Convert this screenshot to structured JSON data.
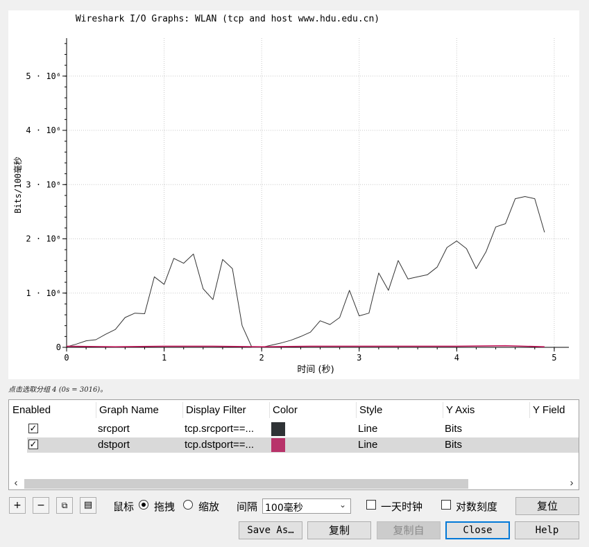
{
  "chart_data": {
    "type": "line",
    "title": "Wireshark I/O Graphs: WLAN (tcp and host www.hdu.edu.cn)",
    "xlabel": "时间 (秒)",
    "ylabel": "Bits/100毫秒",
    "xlim": [
      0,
      5.15
    ],
    "ylim": [
      0,
      5.7
    ],
    "y_unit_exponent": "10⁶",
    "xticks": [
      "0",
      "1",
      "2",
      "3",
      "4",
      "5"
    ],
    "yticks": [
      {
        "value": 0,
        "label": "0"
      },
      {
        "value": 1,
        "label": "1 · 10⁶"
      },
      {
        "value": 2,
        "label": "2 · 10⁶"
      },
      {
        "value": 3,
        "label": "3 · 10⁶"
      },
      {
        "value": 4,
        "label": "4 · 10⁶"
      },
      {
        "value": 5,
        "label": "5 · 10⁶"
      }
    ],
    "grid": true,
    "series": [
      {
        "name": "srcport",
        "color": "#333333",
        "x": [
          0,
          0.1,
          0.2,
          0.3,
          0.4,
          0.5,
          0.6,
          0.7,
          0.8,
          0.9,
          1.0,
          1.1,
          1.2,
          1.3,
          1.4,
          1.5,
          1.6,
          1.7,
          1.8,
          1.9,
          2.0,
          2.1,
          2.2,
          2.3,
          2.4,
          2.5,
          2.6,
          2.7,
          2.8,
          2.9,
          3.0,
          3.1,
          3.2,
          3.3,
          3.4,
          3.5,
          3.6,
          3.7,
          3.8,
          3.9,
          4.0,
          4.1,
          4.2,
          4.3,
          4.4,
          4.5,
          4.6,
          4.7,
          4.8,
          4.9
        ],
        "y": [
          0.01,
          0.06,
          0.12,
          0.14,
          0.24,
          0.33,
          0.55,
          0.63,
          0.62,
          1.3,
          1.16,
          1.64,
          1.55,
          1.72,
          1.08,
          0.88,
          1.62,
          1.45,
          0.4,
          0.0,
          0.0,
          0.04,
          0.08,
          0.13,
          0.2,
          0.28,
          0.49,
          0.42,
          0.55,
          1.05,
          0.58,
          0.63,
          1.37,
          1.05,
          1.6,
          1.26,
          1.3,
          1.34,
          1.48,
          1.84,
          1.96,
          1.82,
          1.45,
          1.76,
          2.22,
          2.28,
          2.74,
          2.78,
          2.74,
          2.12
        ]
      },
      {
        "name": "dstport",
        "color": "#c2185b",
        "x": [
          0,
          0.5,
          1.0,
          1.5,
          2.0,
          2.5,
          3.0,
          3.5,
          4.0,
          4.5,
          4.9
        ],
        "y": [
          0.02,
          0.01,
          0.02,
          0.02,
          0.01,
          0.02,
          0.02,
          0.02,
          0.02,
          0.03,
          0.01
        ]
      }
    ]
  },
  "status_text": "点击选取分组 4 (0s = 3016)。",
  "table": {
    "headers": [
      "Enabled",
      "Graph Name",
      "Display Filter",
      "Color",
      "Style",
      "Y Axis",
      "Y Field"
    ],
    "rows": [
      {
        "enabled": "✓",
        "name": "srcport",
        "filter": "tcp.srcport==...",
        "color": "#2f3336",
        "style": "Line",
        "yaxis": "Bits"
      },
      {
        "enabled": "✓",
        "name": "dstport",
        "filter": "tcp.dstport==...",
        "color": "#b8336a",
        "style": "Line",
        "yaxis": "Bits"
      }
    ]
  },
  "toolbar": {
    "add_label": "+",
    "remove_label": "−",
    "copy_label": "⧉",
    "clear_label": "▤",
    "mouse_label": "鼠标",
    "drag_label": "拖拽",
    "zoom_label": "缩放",
    "interval_label": "间隔",
    "interval_value": "100毫秒",
    "time_of_day_label": "一天时钟",
    "log_scale_label": "对数刻度",
    "reset_label": "复位"
  },
  "buttons": {
    "save_as": "Save As…",
    "copy": "复制",
    "copy_from": "复制自",
    "close": "Close",
    "help": "Help"
  }
}
